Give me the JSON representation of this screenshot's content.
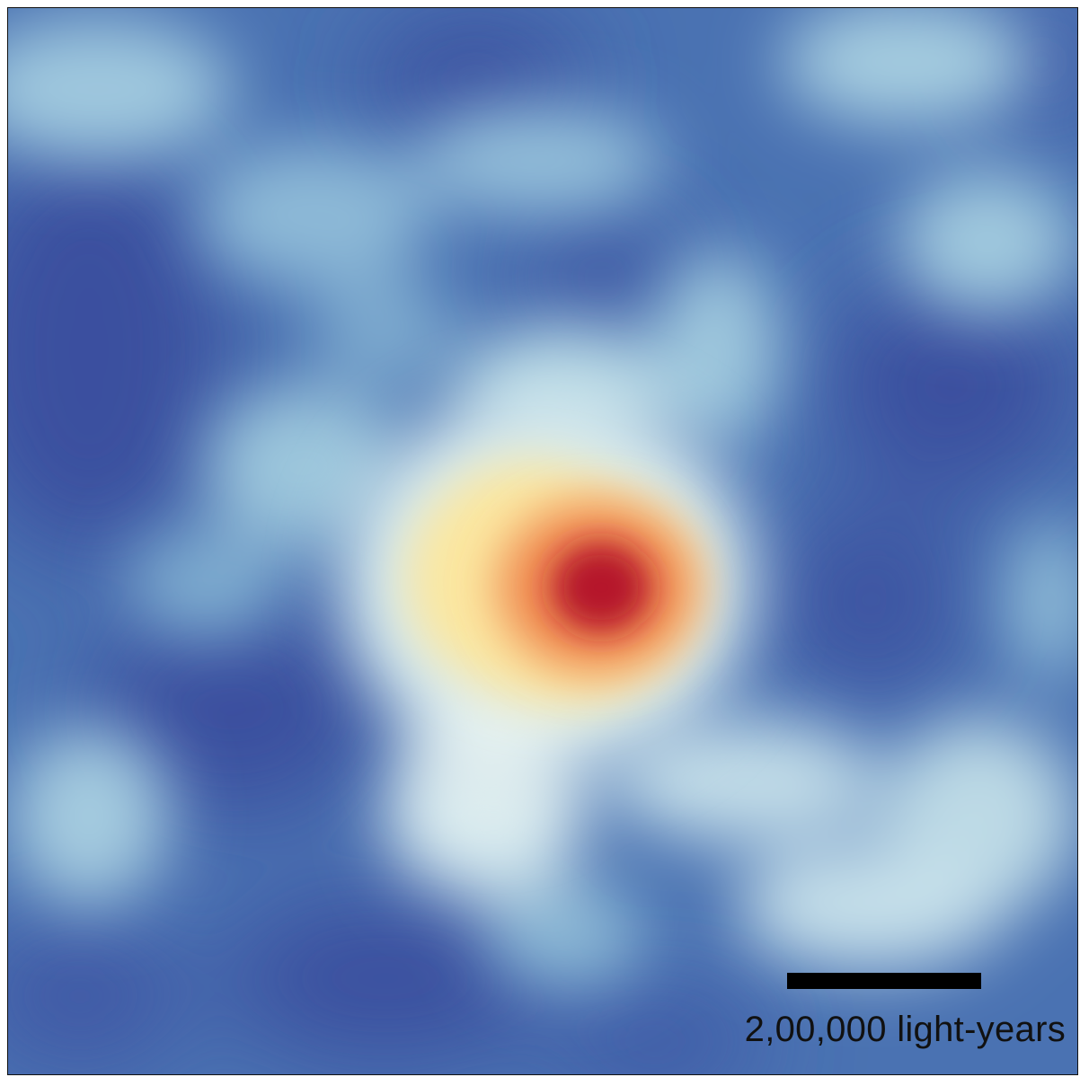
{
  "image": {
    "subject": "density-map",
    "colors": {
      "deep_blue": "#3a4f9f",
      "mid_blue": "#4f78b5",
      "light_blue": "#9dc6dd",
      "pale": "#e7f1f1",
      "yellow": "#fbe9a4",
      "orange": "#ef8a52",
      "red": "#b5192b",
      "frame_border": "#111111"
    }
  },
  "scale_bar": {
    "label": "2,00,000 light-years",
    "bar_color": "#000000"
  }
}
